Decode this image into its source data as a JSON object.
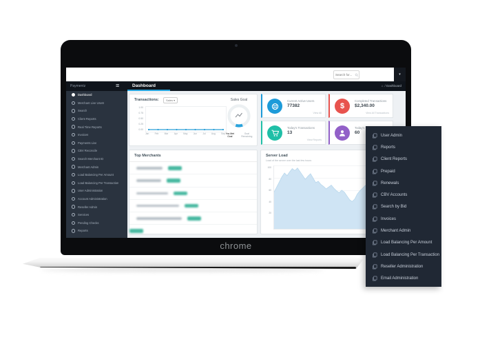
{
  "browser": {
    "search_placeholder": "Search for...",
    "user_caret": "▾"
  },
  "topbar": {
    "brand": "Paymentz",
    "hamburger_icon": "≡",
    "title": "Dashboard",
    "home_icon": "⌂",
    "breadcrumb": "/ Dashboard",
    "accent_color": "#29a8e0"
  },
  "sidebar": {
    "items": [
      "Dashboard",
      "Merchant Live Users",
      "Search",
      "Client Reports",
      "Real Time Reports",
      "Invoices",
      "Payments Live",
      "CBV Reconcile",
      "Search Merchant ID",
      "Merchant Admin",
      "Load Balancing Per Amount",
      "Load Balancing Per Transaction",
      "User Administration",
      "Account Administration",
      "Reseller Admin",
      "Services",
      "Pending Checks",
      "Reports"
    ]
  },
  "stats": [
    {
      "label": "Current Active Users",
      "value": "77382",
      "link": "View All",
      "color": "#1d9bd9",
      "icon": "life-ring-icon"
    },
    {
      "label": "Completed Transactions",
      "value": "$2,340.00",
      "link": "View All Transactions",
      "color": "#e8534e",
      "icon": "dollar-icon",
      "icon_char": "$"
    },
    {
      "label": "Today's Transactions",
      "value": "13",
      "link": "View Reports",
      "color": "#1fbfa7",
      "icon": "cart-icon"
    },
    {
      "label": "Today's Visitors",
      "value": "60",
      "link": "",
      "color": "#9260c8",
      "icon": "user-icon"
    }
  ],
  "transactions_panel": {
    "title": "Transactions:",
    "filter_label": "Sales ▾"
  },
  "sales_goal": {
    "title": "Sales Goal",
    "legend": [
      {
        "label": "You Met Goal",
        "color": "#2aa3dc"
      },
      {
        "label": "Goal Remaining",
        "color": "#9aa3ab"
      }
    ]
  },
  "top_merchants": {
    "title": "Top Merchants"
  },
  "server_load": {
    "title": "Server Load",
    "subtitle": "Load of the server over the last few hours"
  },
  "quick_menu": {
    "items": [
      "User Admin",
      "Reports",
      "Client Reports",
      "Prepaid",
      "Renewals",
      "CBV Accounts",
      "Search by Bid",
      "Invoices",
      "Merchant Admin",
      "Load Balancing Per Amount",
      "Load Balancing Per Transaction",
      "Reseller Administration",
      "Email Administration"
    ]
  },
  "device": {
    "brand": "chrome"
  },
  "chart_data": [
    {
      "type": "line",
      "title": "Transactions",
      "x": [
        "Jan",
        "Feb",
        "Mar",
        "Apr",
        "May",
        "Jun",
        "Jul",
        "Aug",
        "Sep"
      ],
      "y_ticks": [
        "1.00",
        "0.75",
        "0.50",
        "0.25",
        "0.00"
      ],
      "ylim": [
        0,
        1
      ],
      "series": [
        {
          "name": "Sales",
          "values": [
            0,
            0,
            0,
            0,
            0,
            0,
            0,
            0,
            0
          ]
        }
      ],
      "color": "#2a9fd8",
      "grid": true,
      "legend_position": "none"
    },
    {
      "type": "area",
      "title": "Server Load",
      "y_ticks": [
        100,
        80,
        60,
        40,
        20
      ],
      "ylim": [
        0,
        100
      ],
      "values": [
        58,
        66,
        74,
        82,
        88,
        84,
        90,
        95,
        92,
        96,
        90,
        84,
        78,
        83,
        87,
        80,
        73,
        75,
        70,
        67,
        63,
        66,
        69,
        64,
        60,
        57,
        61,
        58,
        52,
        46,
        43,
        47,
        55,
        60,
        64,
        68,
        71,
        69,
        65,
        60,
        52,
        44,
        36,
        30,
        27,
        34
      ],
      "color": "#cfe4f4",
      "line_color": "#b7d7ec",
      "grid": true
    },
    {
      "type": "donut",
      "title": "Sales Goal",
      "slices": [
        {
          "label": "You Met Goal",
          "value": 11,
          "color": "#2aa3dc"
        },
        {
          "label": "Goal Remaining",
          "value": 89,
          "color": "#ecf0f2"
        }
      ]
    }
  ]
}
